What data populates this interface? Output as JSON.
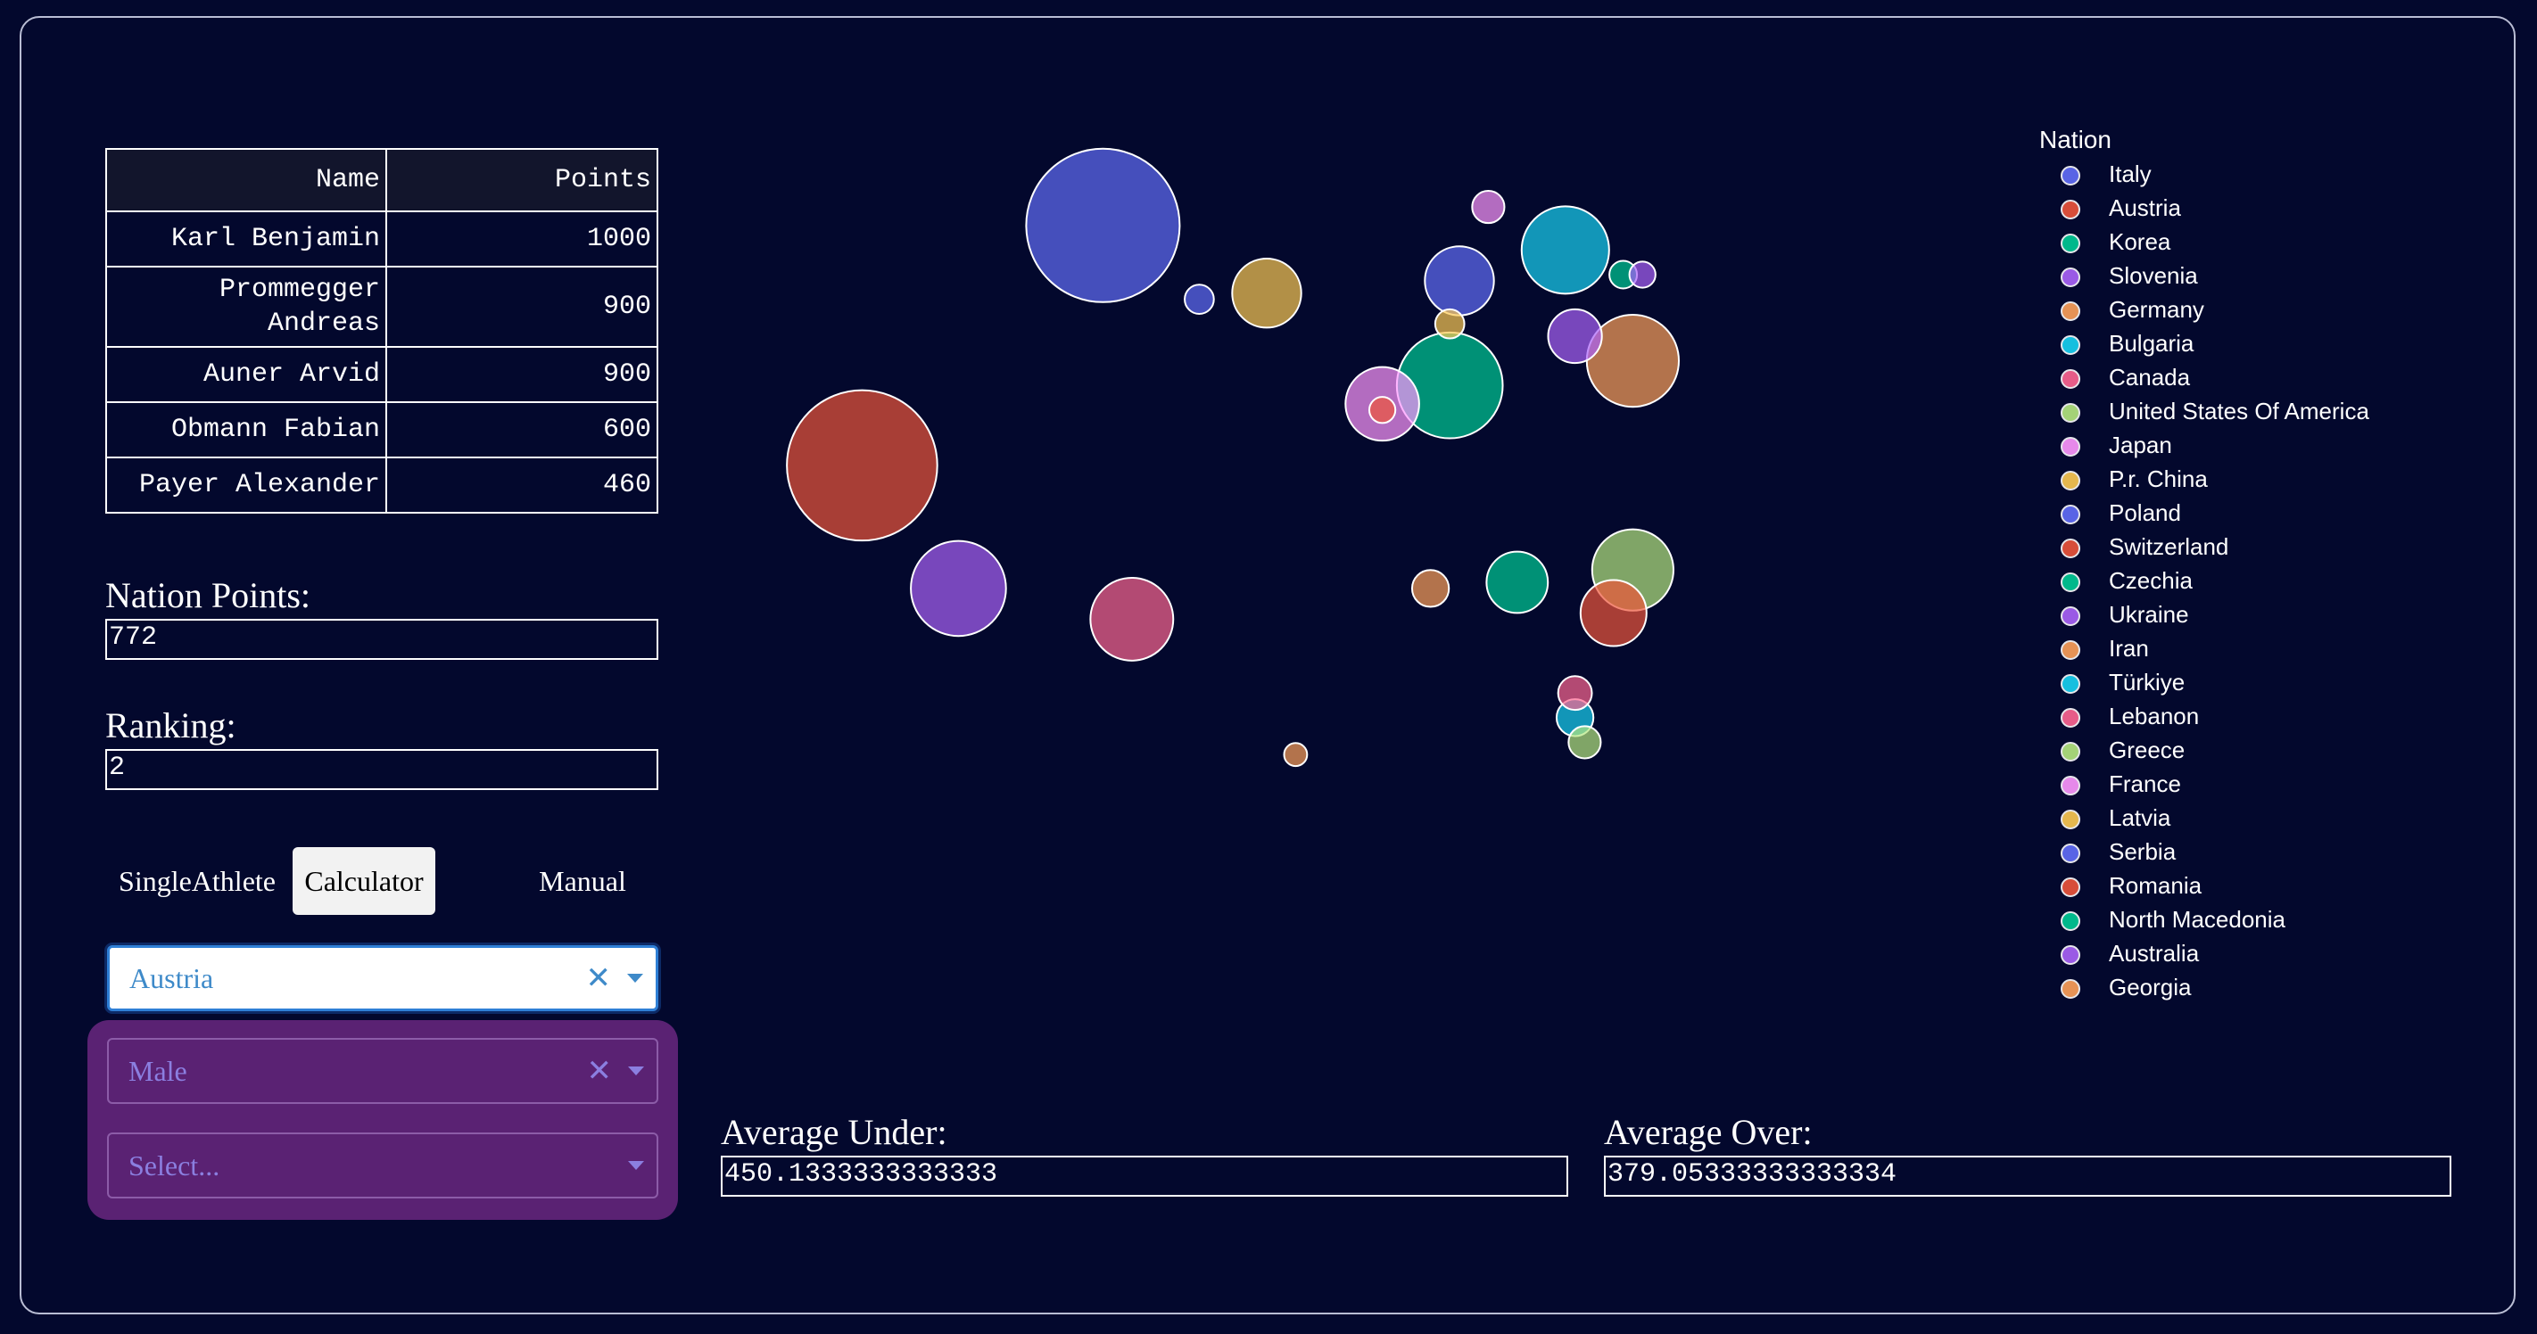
{
  "leaderboard": {
    "headers": {
      "name": "Name",
      "points": "Points"
    },
    "rows": [
      {
        "name": "Karl Benjamin",
        "points": "1000"
      },
      {
        "name": "Prommegger Andreas",
        "points": "900"
      },
      {
        "name": "Auner Arvid",
        "points": "900"
      },
      {
        "name": "Obmann Fabian",
        "points": "600"
      },
      {
        "name": "Payer Alexander",
        "points": "460"
      }
    ]
  },
  "nation_points": {
    "label": "Nation Points:",
    "value": "772"
  },
  "ranking": {
    "label": "Ranking:",
    "value": "2"
  },
  "tabs": [
    {
      "label": "SingleAthlete",
      "active": false
    },
    {
      "label": "Calculator",
      "active": true
    },
    {
      "label": "Manual",
      "active": false
    }
  ],
  "filters": {
    "nation": {
      "value": "Austria",
      "clear_icon": "clear-x-icon",
      "arrow_icon": "chevron-down-icon"
    },
    "gender": {
      "value": "Male",
      "clear_icon": "clear-x-icon",
      "arrow_icon": "chevron-down-icon"
    },
    "category": {
      "placeholder": "Select...",
      "arrow_icon": "chevron-down-icon"
    }
  },
  "averages": {
    "under": {
      "label": "Average Under:",
      "value": "450.1333333333333"
    },
    "over": {
      "label": "Average Over:",
      "value": "379.05333333333334"
    }
  },
  "chart_data": {
    "type": "scatter",
    "title": "",
    "legend_title": "Nation",
    "legend_position": "top-right",
    "grid": false,
    "xlim": [
      0,
      1
    ],
    "ylim": [
      0,
      1
    ],
    "series": [
      {
        "name": "Italy",
        "color": "#636efa",
        "points": [
          {
            "x": 0.33,
            "y": 0.88,
            "size": 1.0
          }
        ]
      },
      {
        "name": "Austria",
        "color": "#ef553b",
        "points": [
          {
            "x": 0.08,
            "y": 0.49,
            "size": 0.98
          }
        ]
      },
      {
        "name": "Korea",
        "color": "#00cc96",
        "points": [
          {
            "x": 0.69,
            "y": 0.62,
            "size": 0.69
          }
        ]
      },
      {
        "name": "Slovenia",
        "color": "#ab63fa",
        "points": [
          {
            "x": 0.18,
            "y": 0.29,
            "size": 0.62
          }
        ]
      },
      {
        "name": "Germany",
        "color": "#ffa15a",
        "points": [
          {
            "x": 0.88,
            "y": 0.66,
            "size": 0.6
          }
        ]
      },
      {
        "name": "Bulgaria",
        "color": "#19d3f3",
        "points": [
          {
            "x": 0.81,
            "y": 0.84,
            "size": 0.57
          }
        ]
      },
      {
        "name": "Canada",
        "color": "#ff6692",
        "points": [
          {
            "x": 0.36,
            "y": 0.24,
            "size": 0.54
          }
        ]
      },
      {
        "name": "United States Of America",
        "color": "#b6e880",
        "points": [
          {
            "x": 0.88,
            "y": 0.32,
            "size": 0.53
          }
        ]
      },
      {
        "name": "Japan",
        "color": "#ff97ff",
        "points": [
          {
            "x": 0.62,
            "y": 0.59,
            "size": 0.48
          }
        ]
      },
      {
        "name": "P.r. China",
        "color": "#fecb52",
        "points": [
          {
            "x": 0.5,
            "y": 0.77,
            "size": 0.45
          }
        ]
      },
      {
        "name": "Poland",
        "color": "#636efa",
        "points": [
          {
            "x": 0.7,
            "y": 0.79,
            "size": 0.45
          }
        ]
      },
      {
        "name": "Switzerland",
        "color": "#ef553b",
        "points": [
          {
            "x": 0.86,
            "y": 0.25,
            "size": 0.43
          }
        ]
      },
      {
        "name": "Czechia",
        "color": "#00cc96",
        "points": [
          {
            "x": 0.76,
            "y": 0.3,
            "size": 0.4
          }
        ]
      },
      {
        "name": "Ukraine",
        "color": "#ab63fa",
        "points": [
          {
            "x": 0.82,
            "y": 0.7,
            "size": 0.35
          }
        ]
      },
      {
        "name": "Iran",
        "color": "#ffa15a",
        "points": [
          {
            "x": 0.67,
            "y": 0.29,
            "size": 0.24
          }
        ]
      },
      {
        "name": "Türkiye",
        "color": "#19d3f3",
        "points": [
          {
            "x": 0.82,
            "y": 0.08,
            "size": 0.24
          }
        ]
      },
      {
        "name": "Lebanon",
        "color": "#ff6692",
        "points": [
          {
            "x": 0.82,
            "y": 0.12,
            "size": 0.22
          }
        ]
      },
      {
        "name": "Greece",
        "color": "#b6e880",
        "points": [
          {
            "x": 0.83,
            "y": 0.04,
            "size": 0.21
          }
        ]
      },
      {
        "name": "France",
        "color": "#ff97ff",
        "points": [
          {
            "x": 0.73,
            "y": 0.91,
            "size": 0.21
          }
        ]
      },
      {
        "name": "Latvia",
        "color": "#fecb52",
        "points": [
          {
            "x": 0.69,
            "y": 0.72,
            "size": 0.19
          }
        ]
      },
      {
        "name": "Serbia",
        "color": "#636efa",
        "points": [
          {
            "x": 0.43,
            "y": 0.76,
            "size": 0.19
          }
        ]
      },
      {
        "name": "Romania",
        "color": "#ef553b",
        "points": [
          {
            "x": 0.62,
            "y": 0.58,
            "size": 0.17
          }
        ]
      },
      {
        "name": "North Macedonia",
        "color": "#00cc96",
        "points": [
          {
            "x": 0.87,
            "y": 0.8,
            "size": 0.18
          }
        ]
      },
      {
        "name": "Australia",
        "color": "#ab63fa",
        "points": [
          {
            "x": 0.89,
            "y": 0.8,
            "size": 0.17
          }
        ]
      },
      {
        "name": "Georgia",
        "color": "#ffa15a",
        "points": [
          {
            "x": 0.53,
            "y": 0.02,
            "size": 0.15
          }
        ]
      }
    ]
  }
}
